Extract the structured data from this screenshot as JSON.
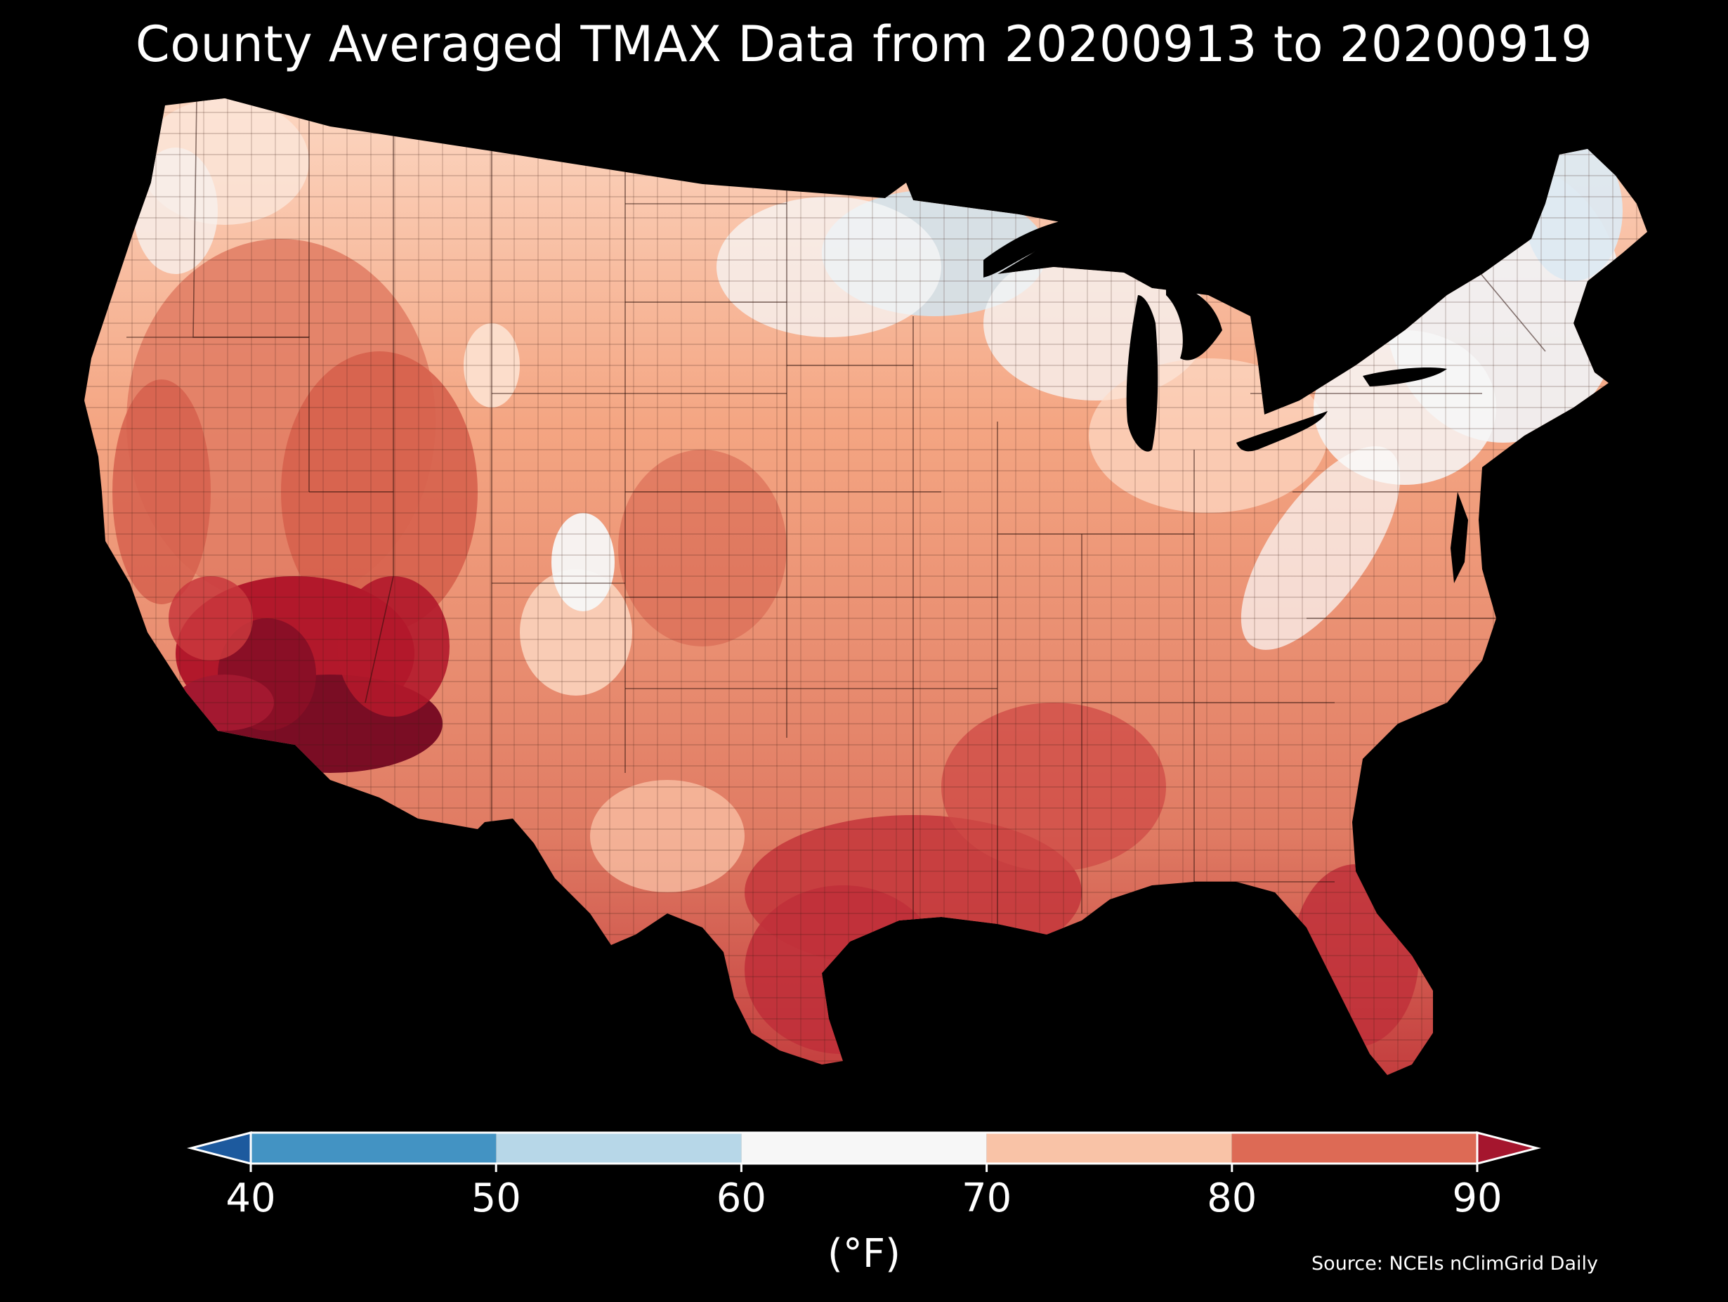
{
  "title": "County Averaged TMAX Data from 20200913 to 20200919",
  "colorbar": {
    "ticks": [
      "40",
      "50",
      "60",
      "70",
      "80",
      "90"
    ],
    "units": "(°F)",
    "extend": "both",
    "bins": [
      {
        "from": 40,
        "to": 50,
        "color": "#4393c3"
      },
      {
        "from": 50,
        "to": 60,
        "color": "#b7d7e8"
      },
      {
        "from": 60,
        "to": 70,
        "color": "#f7f7f7"
      },
      {
        "from": 70,
        "to": 80,
        "color": "#f9c3a7"
      },
      {
        "from": 80,
        "to": 90,
        "color": "#dd6a55"
      }
    ],
    "under_color": "#1d5a9e",
    "over_color": "#a5162e"
  },
  "source": "Source: NCEIs nClimGrid Daily",
  "map": {
    "region": "Contiguous United States",
    "color_scale": [
      "#2166ac",
      "#4393c3",
      "#92c5de",
      "#d1e5f0",
      "#f7f7f7",
      "#fddbc7",
      "#f4a582",
      "#d6604d",
      "#b2182b",
      "#67001f"
    ]
  }
}
